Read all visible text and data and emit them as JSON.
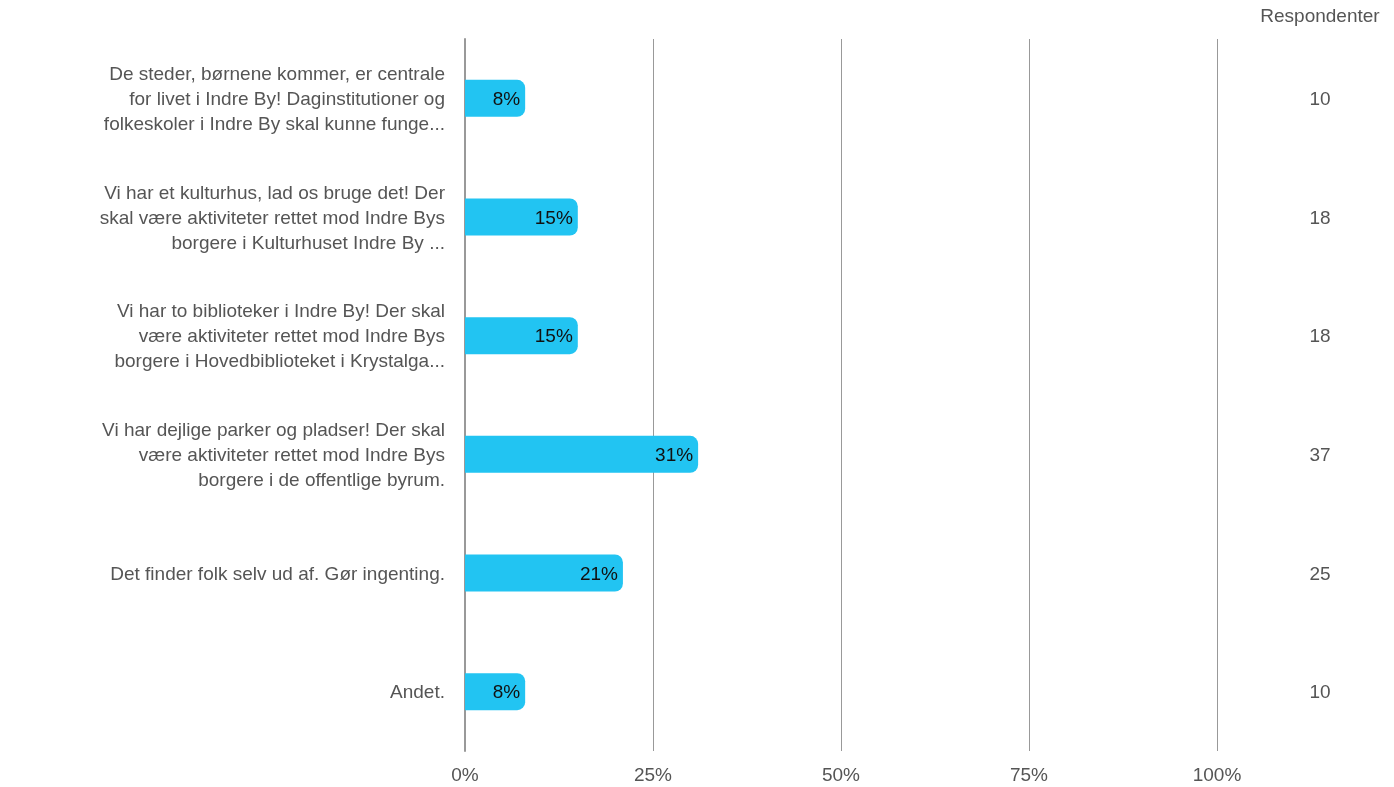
{
  "chart_data": {
    "type": "bar",
    "orientation": "horizontal",
    "categories": [
      "De steder, børnene kommer, er centrale\nfor livet i Indre By! Daginstitutioner og\nfolkeskoler i Indre By skal kunne funge...",
      "Vi har et kulturhus, lad os bruge det! Der\nskal være aktiviteter rettet mod Indre Bys\nborgere i Kulturhuset Indre By ...",
      "Vi har to biblioteker i Indre By! Der skal\nvære aktiviteter rettet mod Indre Bys\nborgere i Hovedbiblioteket i Krystalga...",
      "Vi har dejlige parker og pladser! Der skal\nvære aktiviteter rettet mod Indre Bys\nborgere i de offentlige byrum.",
      "Det finder folk selv ud af. Gør ingenting.",
      "Andet."
    ],
    "values": [
      8,
      15,
      15,
      31,
      21,
      8
    ],
    "value_labels": [
      "8%",
      "15%",
      "15%",
      "31%",
      "21%",
      "8%"
    ],
    "color": "#22c4f2",
    "y2label": "Respondenter",
    "y2_categories": [
      "10",
      "18",
      "18",
      "37",
      "25",
      "10"
    ],
    "xlim": [
      0,
      100
    ],
    "xticks": [
      {
        "value": 0,
        "label": "0%"
      },
      {
        "value": 25,
        "label": "25%"
      },
      {
        "value": 50,
        "label": "50%"
      },
      {
        "value": 75,
        "label": "75%"
      },
      {
        "value": 100,
        "label": "100%"
      }
    ],
    "grid": "x"
  }
}
